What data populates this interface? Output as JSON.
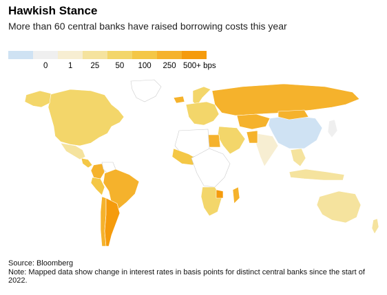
{
  "header": {
    "title": "Hawkish Stance",
    "subtitle": "More than 60 central banks have raised borrowing costs this year"
  },
  "legend": {
    "items": [
      {
        "label": "",
        "color": "#cfe2f3"
      },
      {
        "label": "0",
        "color": "#efefef"
      },
      {
        "label": "1",
        "color": "#f7eed2"
      },
      {
        "label": "25",
        "color": "#f5e39e"
      },
      {
        "label": "50",
        "color": "#f3d66a"
      },
      {
        "label": "100",
        "color": "#f4c746"
      },
      {
        "label": "250",
        "color": "#f5b22c"
      },
      {
        "label": "500+ bps",
        "color": "#f59b0c"
      }
    ]
  },
  "map": {
    "regions": [
      {
        "name": "North America",
        "color": "#f3d66a"
      },
      {
        "name": "Alaska",
        "color": "#f3d66a"
      },
      {
        "name": "Greenland",
        "color": "#ffffff"
      },
      {
        "name": "Mexico",
        "color": "#f5e39e"
      },
      {
        "name": "Central America",
        "color": "#f4c746"
      },
      {
        "name": "Colombia",
        "color": "#f5b22c"
      },
      {
        "name": "Venezuela",
        "color": "#ffffff"
      },
      {
        "name": "Brazil",
        "color": "#f5b22c"
      },
      {
        "name": "Peru",
        "color": "#f4c746"
      },
      {
        "name": "Chile",
        "color": "#f5b22c"
      },
      {
        "name": "Argentina",
        "color": "#f59b0c"
      },
      {
        "name": "Iceland",
        "color": "#f5b22c"
      },
      {
        "name": "Norway",
        "color": "#f3d66a"
      },
      {
        "name": "Europe",
        "color": "#f3d66a"
      },
      {
        "name": "Russia",
        "color": "#f5b22c"
      },
      {
        "name": "Kazakhstan",
        "color": "#f5b22c"
      },
      {
        "name": "Middle East",
        "color": "#f3d66a"
      },
      {
        "name": "Egypt",
        "color": "#f5b22c"
      },
      {
        "name": "North Africa",
        "color": "#ffffff"
      },
      {
        "name": "West Africa",
        "color": "#f4c746"
      },
      {
        "name": "Central Africa",
        "color": "#ffffff"
      },
      {
        "name": "Southern Africa",
        "color": "#f3d66a"
      },
      {
        "name": "Zimbabwe",
        "color": "#f59b0c"
      },
      {
        "name": "Madagascar",
        "color": "#f5b22c"
      },
      {
        "name": "India",
        "color": "#f7eed2"
      },
      {
        "name": "Pakistan",
        "color": "#f5b22c"
      },
      {
        "name": "China",
        "color": "#cfe2f3"
      },
      {
        "name": "Mongolia",
        "color": "#f5b22c"
      },
      {
        "name": "Japan",
        "color": "#efefef"
      },
      {
        "name": "Southeast Asia",
        "color": "#f5e39e"
      },
      {
        "name": "Indonesia",
        "color": "#f5e39e"
      },
      {
        "name": "Australia",
        "color": "#f5e39e"
      },
      {
        "name": "New Zealand",
        "color": "#f5e39e"
      }
    ]
  },
  "footer": {
    "source": "Source: Bloomberg",
    "note": "Note: Mapped data show change in interest rates in basis points for distinct central banks since the start of 2022."
  }
}
